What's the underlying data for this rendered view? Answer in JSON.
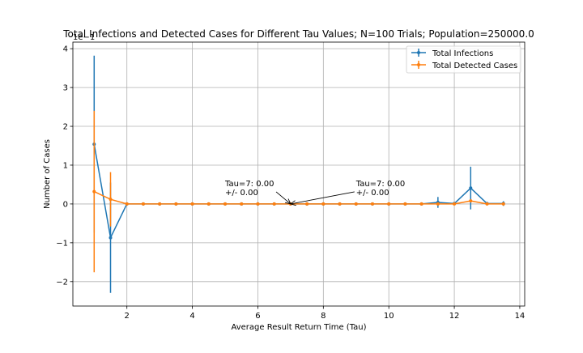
{
  "chart_data": {
    "type": "line",
    "title": "Total Infections and Detected Cases for Different Tau Values; N=100 Trials; Population=250000.0",
    "xlabel": "Average Result Return Time (Tau)",
    "ylabel": "Number of Cases",
    "y_offset_label": "1e−1",
    "xlim": [
      0.35,
      14.15
    ],
    "ylim": [
      -2.63,
      4.17
    ],
    "xticks": [
      2,
      4,
      6,
      8,
      10,
      12,
      14
    ],
    "yticks": [
      -2,
      -1,
      0,
      1,
      2,
      3,
      4
    ],
    "grid": true,
    "legend_position": "upper right",
    "series": [
      {
        "name": "Total Infections",
        "color": "#1f77b4",
        "x": [
          1.0,
          1.5,
          2.0,
          2.5,
          3.0,
          3.5,
          4.0,
          4.5,
          5.0,
          5.5,
          6.0,
          6.5,
          7.0,
          7.5,
          8.0,
          8.5,
          9.0,
          9.5,
          10.0,
          10.5,
          11.0,
          11.5,
          12.0,
          12.5,
          13.0,
          13.5
        ],
        "y": [
          1.54,
          -0.87,
          0,
          0,
          0,
          0,
          0,
          0,
          0,
          0,
          0,
          0,
          0,
          0,
          0,
          0,
          0,
          0,
          0,
          0,
          0,
          0.04,
          0.01,
          0.41,
          0.01,
          0.01
        ],
        "err": [
          2.28,
          1.42,
          0,
          0,
          0,
          0,
          0,
          0,
          0,
          0,
          0,
          0,
          0,
          0,
          0,
          0,
          0,
          0,
          0,
          0,
          0,
          0.14,
          0,
          0.55,
          0,
          0.06
        ]
      },
      {
        "name": "Total Detected Cases",
        "color": "#ff7f0e",
        "x": [
          1.0,
          1.5,
          2.0,
          2.5,
          3.0,
          3.5,
          4.0,
          4.5,
          5.0,
          5.5,
          6.0,
          6.5,
          7.0,
          7.5,
          8.0,
          8.5,
          9.0,
          9.5,
          10.0,
          10.5,
          11.0,
          11.5,
          12.0,
          12.5,
          13.0,
          13.5
        ],
        "y": [
          0.32,
          0.12,
          0,
          0,
          0,
          0,
          0,
          0,
          0,
          0,
          0,
          0,
          0,
          0,
          0,
          0,
          0,
          0,
          0,
          0,
          0,
          0,
          0,
          0.08,
          0,
          0
        ],
        "err": [
          2.08,
          0.7,
          0,
          0,
          0,
          0,
          0,
          0,
          0,
          0,
          0,
          0,
          0,
          0,
          0,
          0,
          0,
          0,
          0,
          0,
          0,
          0,
          0,
          0,
          0,
          0
        ]
      }
    ],
    "annotations": [
      {
        "line1": "Tau=7: 0.00",
        "line2": "+/- 0.00",
        "text_x": 5.0,
        "text_y": 0.25,
        "arrow_to_x": 7.0,
        "arrow_to_y": 0
      },
      {
        "line1": "Tau=7: 0.00",
        "line2": "+/- 0.00",
        "text_x": 9.0,
        "text_y": 0.25,
        "arrow_to_x": 7.0,
        "arrow_to_y": 0
      }
    ]
  }
}
